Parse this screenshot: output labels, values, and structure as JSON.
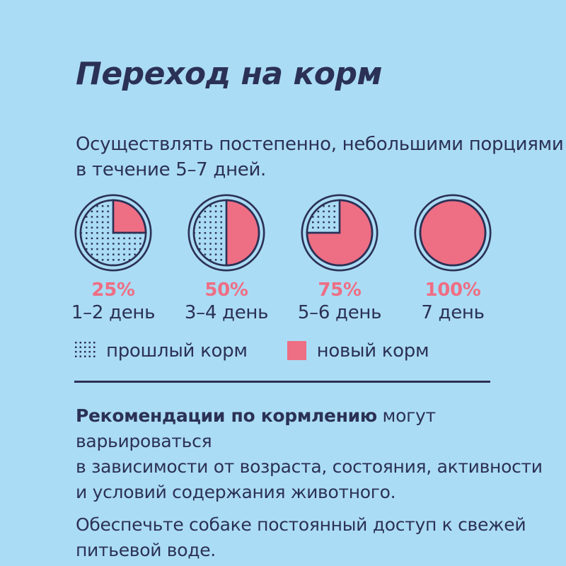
{
  "page": {
    "title": "Переход на корм",
    "subtitle": "Осуществлять постепенно, небольшими порциями\nв течение 5–7 дней."
  },
  "chart_data": {
    "type": "pie",
    "title": "Переход на корм",
    "description": "Четыре круговые диаграммы: доля нового корма по дням перехода",
    "charts": [
      {
        "label": "1–2 день",
        "new_food_pct": 25,
        "old_food_pct": 75
      },
      {
        "label": "3–4 день",
        "new_food_pct": 50,
        "old_food_pct": 50
      },
      {
        "label": "5–6 день",
        "new_food_pct": 75,
        "old_food_pct": 25
      },
      {
        "label": "7 день",
        "new_food_pct": 100,
        "old_food_pct": 0
      }
    ],
    "legend": [
      {
        "label": "прошлый корм",
        "swatch": "dotted-pattern"
      },
      {
        "label": "новый корм",
        "swatch": "solid",
        "color": "#ee6e84"
      }
    ],
    "legend_position": "below-charts"
  },
  "steps": [
    {
      "percent_label": "25%",
      "day_label": "1–2 день"
    },
    {
      "percent_label": "50%",
      "day_label": "3–4 день"
    },
    {
      "percent_label": "75%",
      "day_label": "5–6 день"
    },
    {
      "percent_label": "100%",
      "day_label": "7 день"
    }
  ],
  "legend": {
    "old_food": "прошлый корм",
    "new_food": "новый корм"
  },
  "notes": {
    "p1_bold": "Рекомендации по кормлению",
    "p1_rest": " могут варьироваться\nв зависимости от возраста, состояния, активности\nи условий содержания животного.",
    "p2": "Обеспечьте собаке постоянный доступ к свежей\nпитьевой воде."
  },
  "colors": {
    "background": "#abdcf5",
    "navy": "#2b3156",
    "pink": "#ee6e84"
  }
}
